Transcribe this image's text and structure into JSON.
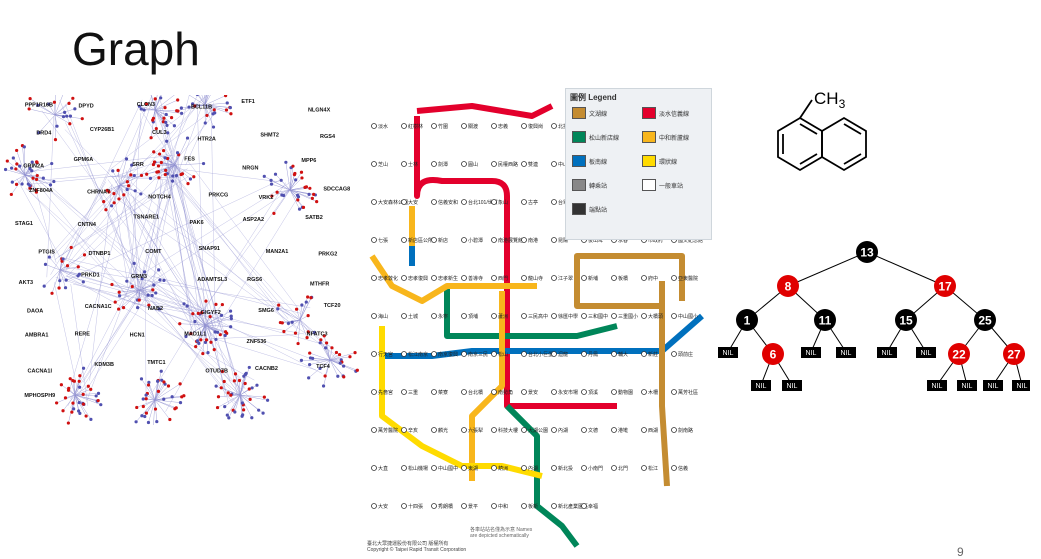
{
  "slide": {
    "title": "Graph",
    "page_number": "9"
  },
  "network": {
    "gene_labels": [
      "PPP1R16B",
      "DPYD",
      "CLCN3",
      "BCL11B",
      "ETF1",
      "NLGN4X",
      "DRD4",
      "CYP26B1",
      "CUL3",
      "HTR2A",
      "SHMT2",
      "RGS4",
      "GRIN2A",
      "GPM6A",
      "SRR",
      "FES",
      "NRGN",
      "MPP6",
      "ZNF804A",
      "CHRNA7",
      "NOTCH4",
      "PRKCG",
      "VRK2",
      "SDCCAG8",
      "STAG1",
      "CNTN4",
      "TSNARE1",
      "PAK6",
      "ASP2A2",
      "SATB2",
      "PTGIS",
      "DTNBP1",
      "COMT",
      "SNAP91",
      "MAN2A1",
      "PRKG2",
      "AKT3",
      "PRKD1",
      "GRM3",
      "ADAMTSL3",
      "RGS6",
      "MTHFR",
      "DAOA",
      "CACNA1C",
      "NAB2",
      "GIGYF2",
      "SMG6",
      "TCF20",
      "AMBRA1",
      "RERE",
      "HCN1",
      "MAD1L1",
      "ZNF536",
      "NFATC3",
      "CACNA1I",
      "KDM3B",
      "TMTC1",
      "OTUD7B",
      "CACNB2",
      "TCF4",
      "MPHOSPH9"
    ]
  },
  "metro": {
    "legend_title": "圖例 Legend",
    "legend_items": [
      "文湖線",
      "淡水信義線",
      "松山新店線",
      "中和新蘆線",
      "板南線",
      "環狀線",
      "轉乘站",
      "一般車站",
      "端點站"
    ],
    "stations": [
      "淡水",
      "紅樹林",
      "竹圍",
      "關渡",
      "忠義",
      "復興崗",
      "北投",
      "奇岩",
      "唭哩岸",
      "石牌",
      "明德",
      "芝山",
      "士林",
      "劍潭",
      "圓山",
      "民權西路",
      "雙連",
      "中山",
      "台北車站",
      "台大醫院",
      "中正紀念堂",
      "東門",
      "大安森林公園",
      "大安",
      "信義安和",
      "台北101/世貿",
      "象山",
      "古亭",
      "台電大樓",
      "公館",
      "萬隆",
      "景美",
      "大坪林",
      "七張",
      "新店區公所",
      "新店",
      "小碧潭",
      "南港展覽館",
      "南港",
      "昆陽",
      "後山埤",
      "永春",
      "市政府",
      "國父紀念館",
      "忠孝敦化",
      "忠孝復興",
      "忠孝新生",
      "善導寺",
      "西門",
      "龍山寺",
      "江子翠",
      "新埔",
      "板橋",
      "府中",
      "亞東醫院",
      "海山",
      "土城",
      "永寧",
      "頂埔",
      "蘆洲",
      "三民高中",
      "徐匯中學",
      "三和國中",
      "三重國小",
      "大橋頭",
      "中山國小",
      "行天宮",
      "松江南京",
      "南京復興",
      "南京三民",
      "松山",
      "台北小巨蛋",
      "迴龍",
      "丹鳳",
      "輔大",
      "新莊",
      "頭前庄",
      "先嗇宮",
      "三重",
      "菜寮",
      "台北橋",
      "南勢角",
      "景安",
      "永安市場",
      "頂溪",
      "動物園",
      "木柵",
      "萬芳社區",
      "萬芳醫院",
      "辛亥",
      "麟光",
      "六張犁",
      "科技大樓",
      "大湖公園",
      "內湖",
      "文德",
      "港墘",
      "西湖",
      "劍南路",
      "大直",
      "松山機場",
      "中山國中",
      "東湖",
      "葫洲",
      "內湖",
      "新北投",
      "小南門",
      "北門",
      "松江",
      "信義",
      "大安",
      "十四張",
      "秀朗橋",
      "景平",
      "中和",
      "板新",
      "新北產業園區",
      "幸福"
    ],
    "note": "各車站站名僅為示意\nNames are depicted schematically",
    "footer": "臺北大眾捷運股份有限公司 版權所有\nCopyright © Taipei Rapid Transit Corporation"
  },
  "molecule": {
    "substituent": "CH3"
  },
  "tree": {
    "nodes": [
      {
        "id": "n13",
        "label": "13",
        "color": "black"
      },
      {
        "id": "n8",
        "label": "8",
        "color": "red"
      },
      {
        "id": "n17",
        "label": "17",
        "color": "red"
      },
      {
        "id": "n1",
        "label": "1",
        "color": "black"
      },
      {
        "id": "n11",
        "label": "11",
        "color": "black"
      },
      {
        "id": "n15",
        "label": "15",
        "color": "black"
      },
      {
        "id": "n25",
        "label": "25",
        "color": "black"
      },
      {
        "id": "n6",
        "label": "6",
        "color": "red"
      },
      {
        "id": "n22",
        "label": "22",
        "color": "red"
      },
      {
        "id": "n27",
        "label": "27",
        "color": "red"
      }
    ],
    "nil_label": "NIL",
    "colors": {
      "black": "#000000",
      "red": "#e00000"
    }
  },
  "colors": {
    "network_edge": "#9090d0",
    "network_node_red": "#d01010",
    "network_node_blue": "#5050b0",
    "line_red": "#e3002c",
    "line_blue": "#0070bd",
    "line_green": "#008659",
    "line_orange": "#f8b61c",
    "line_brown": "#c48c31",
    "line_yellow": "#ffdb00"
  }
}
